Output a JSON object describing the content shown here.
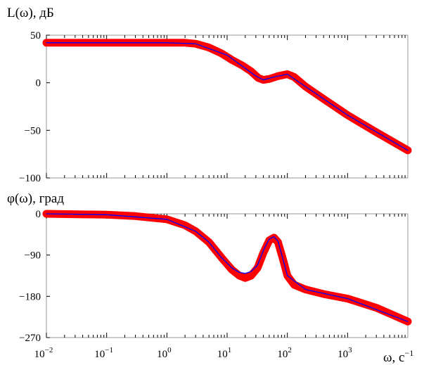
{
  "chart_data": [
    {
      "type": "line",
      "ylabel": "L(ω), дБ",
      "xscale": "log",
      "xlim": [
        0.01,
        10000
      ],
      "ylim": [
        -100,
        50
      ],
      "yticks": [
        50,
        0,
        -50,
        -100
      ],
      "ytick_labels": [
        "50",
        "0",
        "−50",
        "−100"
      ],
      "grid": false,
      "series": [
        {
          "color": "#ff0000",
          "x": [
            0.01,
            0.03,
            0.1,
            0.3,
            1,
            2,
            3,
            5,
            8,
            12,
            18,
            25,
            33,
            40,
            50,
            70,
            100,
            130,
            200,
            400,
            1000,
            3000,
            10000
          ],
          "y": [
            42,
            42,
            42,
            42,
            42,
            42,
            41,
            37,
            31,
            24,
            18,
            12,
            5,
            3,
            4,
            7,
            9,
            6,
            -4,
            -17,
            -34,
            -52,
            -71
          ]
        },
        {
          "color": "#0000ff",
          "x": [
            0.01,
            0.1,
            1,
            3,
            10,
            30,
            40,
            60,
            100,
            200,
            1000,
            10000
          ],
          "y": [
            42,
            42,
            42,
            41,
            29,
            7,
            3,
            6,
            9,
            -4,
            -34,
            -71
          ]
        }
      ]
    },
    {
      "type": "line",
      "ylabel": "φ(ω), град",
      "xlabel": "ω, с",
      "xlabel_superscript": "−1",
      "xscale": "log",
      "xlim": [
        0.01,
        10000
      ],
      "ylim": [
        -270,
        0
      ],
      "yticks": [
        0,
        -90,
        -180,
        -270
      ],
      "ytick_labels": [
        "0",
        "−90",
        "−180",
        "−270"
      ],
      "xticks": [
        0.01,
        0.1,
        1,
        10,
        100,
        1000
      ],
      "xtick_labels": [
        {
          "base": "10",
          "exp": "−2"
        },
        {
          "base": "10",
          "exp": "−1"
        },
        {
          "base": "10",
          "exp": "0"
        },
        {
          "base": "10",
          "exp": "1"
        },
        {
          "base": "10",
          "exp": "2"
        },
        {
          "base": "10",
          "exp": "3"
        }
      ],
      "grid": false,
      "series": [
        {
          "color": "#ff0000",
          "x": [
            0.01,
            0.1,
            0.3,
            1,
            2,
            3,
            5,
            8,
            12,
            16,
            20,
            25,
            32,
            40,
            50,
            60,
            70,
            85,
            100,
            130,
            200,
            400,
            1000,
            3000,
            10000
          ],
          "y": [
            0,
            -2,
            -5,
            -12,
            -25,
            -38,
            -62,
            -95,
            -122,
            -135,
            -140,
            -135,
            -118,
            -85,
            -58,
            -52,
            -62,
            -100,
            -135,
            -155,
            -165,
            -175,
            -185,
            -205,
            -235
          ]
        },
        {
          "color": "#0000ff",
          "x": [
            0.01,
            0.1,
            1,
            3,
            5,
            8,
            12,
            16,
            20,
            25,
            32,
            40,
            50,
            60,
            70,
            85,
            100,
            200,
            1000,
            10000
          ],
          "y": [
            0,
            -2,
            -12,
            -38,
            -62,
            -95,
            -118,
            -128,
            -130,
            -126,
            -112,
            -80,
            -55,
            -50,
            -60,
            -100,
            -135,
            -165,
            -185,
            -235
          ]
        }
      ]
    }
  ]
}
